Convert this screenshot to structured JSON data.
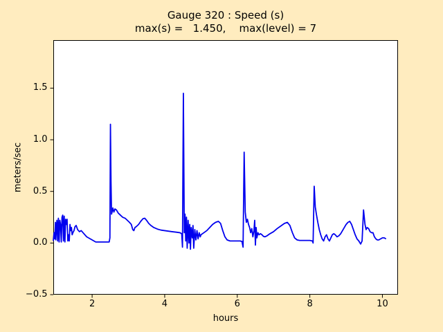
{
  "figure": {
    "background_color": "#ffecbf",
    "plot_background": "#ffffff",
    "axis_color": "#000000",
    "text_color": "#000000"
  },
  "chart_data": {
    "type": "line",
    "title": "Gauge 320 : Speed (s)",
    "subtitle": "max(s) =   1.450,    max(level) = 7",
    "max_s": 1.45,
    "max_level": 7,
    "xlabel": "hours",
    "ylabel": "meters/sec",
    "xlim": [
      0.93,
      10.43
    ],
    "ylim": [
      -0.5,
      1.965
    ],
    "x_ticks": [
      2,
      4,
      6,
      8,
      10
    ],
    "x_tick_labels": [
      "2",
      "4",
      "6",
      "8",
      "10"
    ],
    "y_ticks": [
      -0.5,
      0.0,
      0.5,
      1.0,
      1.5
    ],
    "y_tick_labels": [
      "−0.5",
      "0.0",
      "0.5",
      "1.0",
      "1.5"
    ],
    "grid": false,
    "legend": null,
    "series": [
      {
        "name": "speed",
        "color": "#0000ee",
        "line_width": 1.8,
        "points": [
          [
            0.93,
            0.02
          ],
          [
            0.95,
            0.1
          ],
          [
            0.97,
            0.04
          ],
          [
            0.99,
            0.2
          ],
          [
            1.0,
            0.03
          ],
          [
            1.02,
            0.16
          ],
          [
            1.03,
            0.22
          ],
          [
            1.05,
            0.02
          ],
          [
            1.07,
            0.24
          ],
          [
            1.09,
            0.01
          ],
          [
            1.11,
            0.22
          ],
          [
            1.13,
            0.18
          ],
          [
            1.15,
            0.01
          ],
          [
            1.17,
            0.25
          ],
          [
            1.19,
            0.27
          ],
          [
            1.21,
            0.02
          ],
          [
            1.23,
            0.26
          ],
          [
            1.25,
            0.01
          ],
          [
            1.27,
            0.23
          ],
          [
            1.29,
            0.18
          ],
          [
            1.31,
            0.23
          ],
          [
            1.33,
            0.02
          ],
          [
            1.35,
            0.08
          ],
          [
            1.37,
            0.02
          ],
          [
            1.39,
            0.18
          ],
          [
            1.41,
            0.12
          ],
          [
            1.43,
            0.15
          ],
          [
            1.45,
            0.08
          ],
          [
            1.47,
            0.1
          ],
          [
            1.5,
            0.12
          ],
          [
            1.53,
            0.16
          ],
          [
            1.56,
            0.17
          ],
          [
            1.6,
            0.13
          ],
          [
            1.65,
            0.11
          ],
          [
            1.7,
            0.12
          ],
          [
            1.75,
            0.1
          ],
          [
            1.8,
            0.08
          ],
          [
            1.85,
            0.06
          ],
          [
            1.9,
            0.05
          ],
          [
            1.95,
            0.04
          ],
          [
            2.0,
            0.03
          ],
          [
            2.05,
            0.02
          ],
          [
            2.1,
            0.01
          ],
          [
            2.2,
            0.01
          ],
          [
            2.3,
            0.01
          ],
          [
            2.4,
            0.01
          ],
          [
            2.47,
            0.01
          ],
          [
            2.49,
            0.05
          ],
          [
            2.505,
            1.15
          ],
          [
            2.52,
            0.6
          ],
          [
            2.535,
            0.28
          ],
          [
            2.55,
            0.3
          ],
          [
            2.57,
            0.34
          ],
          [
            2.6,
            0.3
          ],
          [
            2.63,
            0.33
          ],
          [
            2.67,
            0.32
          ],
          [
            2.72,
            0.29
          ],
          [
            2.78,
            0.27
          ],
          [
            2.84,
            0.25
          ],
          [
            2.91,
            0.24
          ],
          [
            2.97,
            0.22
          ],
          [
            3.03,
            0.2
          ],
          [
            3.08,
            0.18
          ],
          [
            3.12,
            0.13
          ],
          [
            3.15,
            0.12
          ],
          [
            3.18,
            0.15
          ],
          [
            3.22,
            0.16
          ],
          [
            3.28,
            0.18
          ],
          [
            3.34,
            0.21
          ],
          [
            3.4,
            0.235
          ],
          [
            3.45,
            0.24
          ],
          [
            3.5,
            0.22
          ],
          [
            3.56,
            0.19
          ],
          [
            3.62,
            0.17
          ],
          [
            3.7,
            0.15
          ],
          [
            3.8,
            0.135
          ],
          [
            3.9,
            0.125
          ],
          [
            4.0,
            0.12
          ],
          [
            4.1,
            0.115
          ],
          [
            4.2,
            0.11
          ],
          [
            4.32,
            0.105
          ],
          [
            4.42,
            0.1
          ],
          [
            4.47,
            0.09
          ],
          [
            4.49,
            -0.04
          ],
          [
            4.515,
            1.45
          ],
          [
            4.54,
            0.1
          ],
          [
            4.56,
            0.28
          ],
          [
            4.58,
            0.02
          ],
          [
            4.6,
            0.25
          ],
          [
            4.62,
            -0.05
          ],
          [
            4.645,
            0.22
          ],
          [
            4.67,
            0.0
          ],
          [
            4.69,
            0.18
          ],
          [
            4.71,
            -0.06
          ],
          [
            4.73,
            0.15
          ],
          [
            4.76,
            0.05
          ],
          [
            4.78,
            0.17
          ],
          [
            4.8,
            -0.05
          ],
          [
            4.83,
            0.13
          ],
          [
            4.86,
            0.03
          ],
          [
            4.89,
            0.12
          ],
          [
            4.92,
            0.04
          ],
          [
            4.95,
            0.1
          ],
          [
            4.98,
            0.06
          ],
          [
            5.0,
            0.08
          ],
          [
            5.08,
            0.1
          ],
          [
            5.16,
            0.12
          ],
          [
            5.24,
            0.15
          ],
          [
            5.32,
            0.18
          ],
          [
            5.4,
            0.2
          ],
          [
            5.48,
            0.21
          ],
          [
            5.54,
            0.19
          ],
          [
            5.6,
            0.12
          ],
          [
            5.66,
            0.06
          ],
          [
            5.72,
            0.03
          ],
          [
            5.8,
            0.02
          ],
          [
            5.9,
            0.02
          ],
          [
            6.0,
            0.02
          ],
          [
            6.08,
            0.02
          ],
          [
            6.13,
            0.015
          ],
          [
            6.16,
            -0.04
          ],
          [
            6.19,
            0.88
          ],
          [
            6.22,
            0.3
          ],
          [
            6.25,
            0.2
          ],
          [
            6.28,
            0.23
          ],
          [
            6.31,
            0.18
          ],
          [
            6.34,
            0.15
          ],
          [
            6.37,
            0.1
          ],
          [
            6.4,
            0.14
          ],
          [
            6.43,
            0.06
          ],
          [
            6.46,
            0.12
          ],
          [
            6.48,
            0.22
          ],
          [
            6.5,
            -0.02
          ],
          [
            6.52,
            0.15
          ],
          [
            6.54,
            0.05
          ],
          [
            6.57,
            0.1
          ],
          [
            6.6,
            0.08
          ],
          [
            6.64,
            0.09
          ],
          [
            6.68,
            0.08
          ],
          [
            6.72,
            0.065
          ],
          [
            6.76,
            0.06
          ],
          [
            6.82,
            0.07
          ],
          [
            6.9,
            0.09
          ],
          [
            7.0,
            0.11
          ],
          [
            7.1,
            0.14
          ],
          [
            7.2,
            0.165
          ],
          [
            7.3,
            0.19
          ],
          [
            7.38,
            0.2
          ],
          [
            7.45,
            0.17
          ],
          [
            7.52,
            0.1
          ],
          [
            7.58,
            0.05
          ],
          [
            7.65,
            0.03
          ],
          [
            7.72,
            0.025
          ],
          [
            7.8,
            0.025
          ],
          [
            7.9,
            0.025
          ],
          [
            8.0,
            0.025
          ],
          [
            8.07,
            0.02
          ],
          [
            8.09,
            0.0
          ],
          [
            8.12,
            0.55
          ],
          [
            8.15,
            0.35
          ],
          [
            8.18,
            0.28
          ],
          [
            8.22,
            0.2
          ],
          [
            8.26,
            0.13
          ],
          [
            8.3,
            0.08
          ],
          [
            8.34,
            0.04
          ],
          [
            8.38,
            0.02
          ],
          [
            8.42,
            0.06
          ],
          [
            8.46,
            0.08
          ],
          [
            8.5,
            0.04
          ],
          [
            8.54,
            0.02
          ],
          [
            8.58,
            0.05
          ],
          [
            8.62,
            0.08
          ],
          [
            8.66,
            0.09
          ],
          [
            8.7,
            0.08
          ],
          [
            8.75,
            0.06
          ],
          [
            8.8,
            0.07
          ],
          [
            8.85,
            0.09
          ],
          [
            8.9,
            0.12
          ],
          [
            8.95,
            0.15
          ],
          [
            9.0,
            0.18
          ],
          [
            9.05,
            0.2
          ],
          [
            9.1,
            0.21
          ],
          [
            9.15,
            0.18
          ],
          [
            9.2,
            0.13
          ],
          [
            9.25,
            0.08
          ],
          [
            9.3,
            0.04
          ],
          [
            9.35,
            0.02
          ],
          [
            9.4,
            -0.01
          ],
          [
            9.44,
            0.02
          ],
          [
            9.48,
            0.32
          ],
          [
            9.52,
            0.18
          ],
          [
            9.55,
            0.13
          ],
          [
            9.58,
            0.15
          ],
          [
            9.62,
            0.14
          ],
          [
            9.66,
            0.11
          ],
          [
            9.7,
            0.1
          ],
          [
            9.74,
            0.1
          ],
          [
            9.78,
            0.06
          ],
          [
            9.82,
            0.04
          ],
          [
            9.86,
            0.03
          ],
          [
            9.9,
            0.03
          ],
          [
            9.95,
            0.04
          ],
          [
            10.0,
            0.05
          ],
          [
            10.05,
            0.05
          ],
          [
            10.1,
            0.04
          ]
        ]
      }
    ]
  }
}
